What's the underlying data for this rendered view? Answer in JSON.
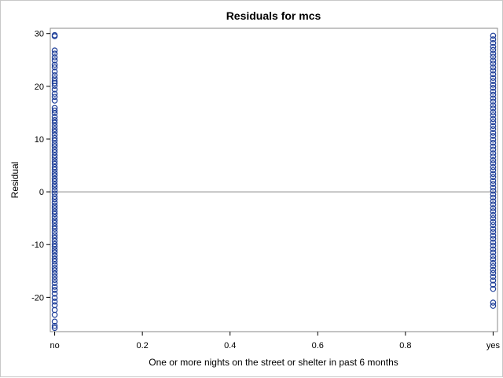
{
  "chart_data": {
    "type": "scatter",
    "title": "Residuals for mcs",
    "xlabel": "One or more nights on the street or shelter in past 6 months",
    "ylabel": "Residual",
    "xlim": [
      -0.01,
      1.01
    ],
    "ylim": [
      -26.5,
      31
    ],
    "x_ticks": [
      0,
      0.2,
      0.4,
      0.6,
      0.8,
      1
    ],
    "x_tick_labels": [
      "no",
      "0.2",
      "0.4",
      "0.6",
      "0.8",
      "yes"
    ],
    "y_ticks": [
      -20,
      -10,
      0,
      10,
      20,
      30
    ],
    "y_tick_labels": [
      "-20",
      "-10",
      "0",
      "10",
      "20",
      "30"
    ],
    "reference_line_y": 0,
    "marker": "open-circle",
    "colors": {
      "marker": "#1f3f99",
      "frame": "#8a8a8a",
      "refline": "#8a8a8a"
    },
    "series": [
      {
        "x": 0,
        "y": [
          29.7,
          29.5,
          26.8,
          26.2,
          25.5,
          24.9,
          24.1,
          23.6,
          22.8,
          22.1,
          21.5,
          21.0,
          20.6,
          20.1,
          19.4,
          18.6,
          18.0,
          17.3,
          15.9,
          15.4,
          14.9,
          14.2,
          13.6,
          13.1,
          12.5,
          11.9,
          11.4,
          10.8,
          10.2,
          9.7,
          9.1,
          8.6,
          8.0,
          7.5,
          6.9,
          6.4,
          5.8,
          5.3,
          4.7,
          4.2,
          3.6,
          3.1,
          2.5,
          2.0,
          1.4,
          0.9,
          0.3,
          -0.3,
          -0.9,
          -1.4,
          -2.0,
          -2.6,
          -3.1,
          -3.7,
          -4.2,
          -4.8,
          -5.4,
          -5.9,
          -6.5,
          -7.0,
          -7.6,
          -8.2,
          -8.7,
          -9.3,
          -9.9,
          -10.4,
          -11.0,
          -11.5,
          -12.1,
          -12.7,
          -13.2,
          -13.8,
          -14.4,
          -14.9,
          -15.5,
          -16.1,
          -16.7,
          -17.3,
          -18.0,
          -18.6,
          -19.3,
          -20.1,
          -20.8,
          -21.5,
          -22.4,
          -23.3,
          -24.6,
          -25.4,
          -25.8
        ]
      },
      {
        "x": 1,
        "y": [
          29.6,
          28.9,
          28.2,
          27.5,
          26.9,
          26.2,
          25.6,
          24.9,
          24.3,
          23.6,
          23.0,
          22.3,
          21.6,
          21.0,
          20.3,
          19.7,
          19.0,
          18.4,
          17.7,
          17.1,
          16.4,
          15.8,
          15.1,
          14.5,
          13.8,
          13.2,
          12.5,
          11.9,
          11.2,
          10.6,
          9.9,
          9.3,
          8.6,
          8.0,
          7.3,
          6.7,
          6.0,
          5.4,
          4.7,
          4.1,
          3.4,
          2.8,
          2.1,
          1.5,
          0.8,
          0.2,
          -0.5,
          -1.1,
          -1.8,
          -2.4,
          -3.1,
          -3.7,
          -4.4,
          -5.0,
          -5.7,
          -6.3,
          -7.0,
          -7.6,
          -8.3,
          -8.9,
          -9.6,
          -10.2,
          -10.9,
          -11.5,
          -12.2,
          -12.8,
          -13.5,
          -14.1,
          -14.8,
          -15.4,
          -16.1,
          -16.8,
          -17.6,
          -18.4,
          -21.0,
          -21.6
        ]
      }
    ]
  }
}
